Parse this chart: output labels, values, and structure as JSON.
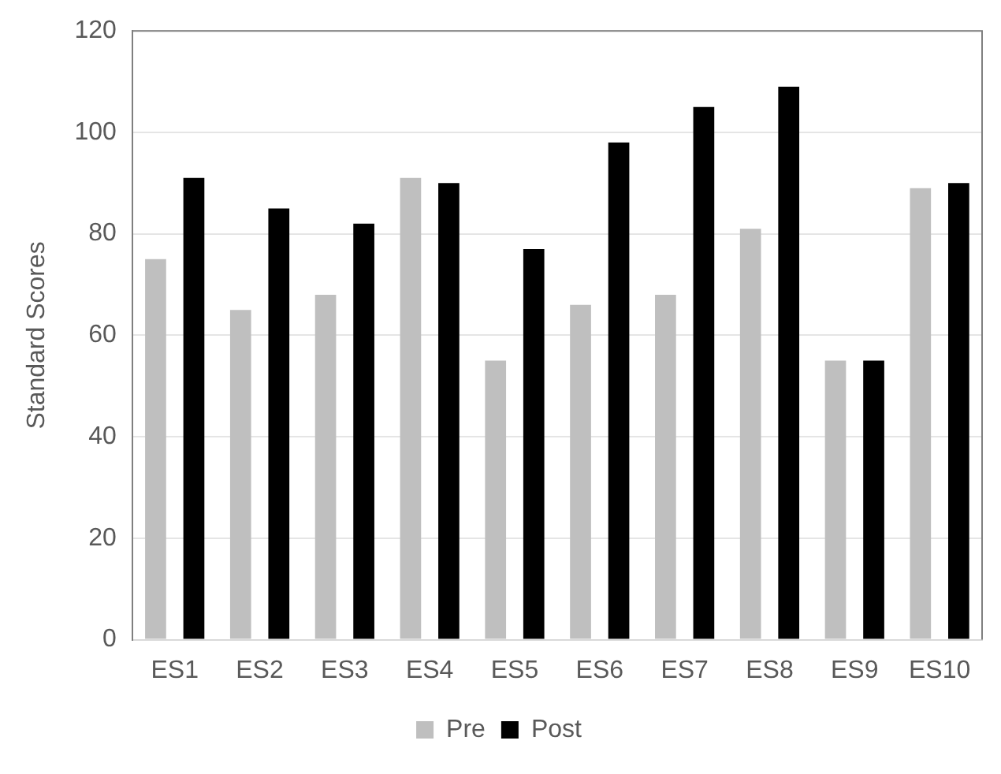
{
  "chart_data": {
    "type": "bar",
    "ylabel": "Standard Scores",
    "categories": [
      "ES1",
      "ES2",
      "ES3",
      "ES4",
      "ES5",
      "ES6",
      "ES7",
      "ES8",
      "ES9",
      "ES10"
    ],
    "series": [
      {
        "name": "Pre",
        "color": "#bfbfbf",
        "values": [
          75,
          65,
          68,
          91,
          55,
          66,
          68,
          81,
          55,
          89
        ]
      },
      {
        "name": "Post",
        "color": "#000000",
        "values": [
          91,
          85,
          82,
          90,
          77,
          98,
          105,
          109,
          55,
          90
        ]
      }
    ],
    "ylim": [
      0,
      120
    ],
    "yticks": [
      0,
      20,
      40,
      60,
      80,
      100,
      120
    ],
    "grid": "y",
    "legend": "bottom"
  }
}
